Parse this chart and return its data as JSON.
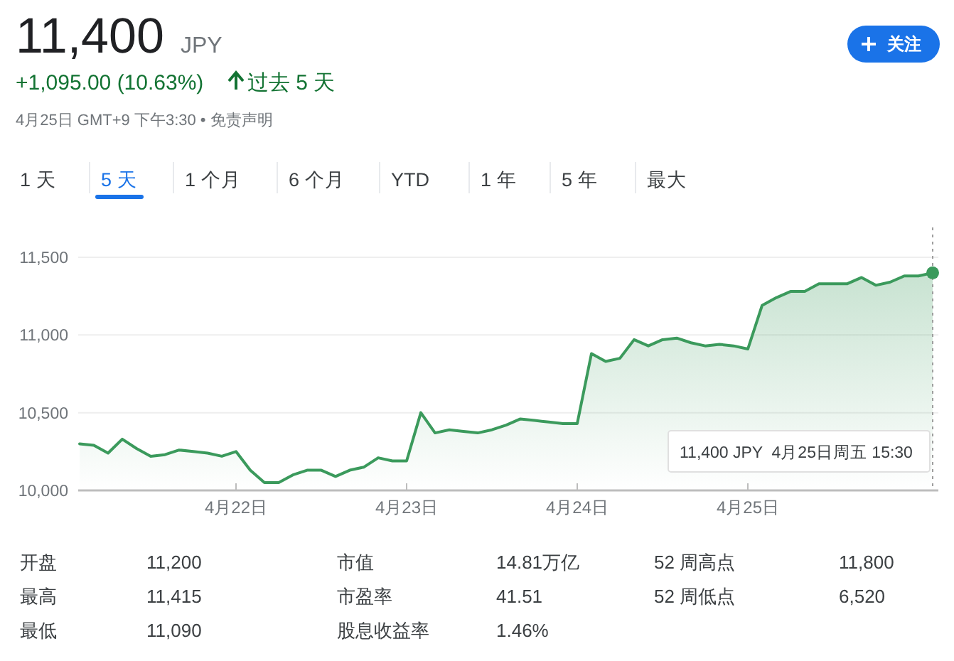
{
  "chart_data": {
    "type": "area",
    "title": "11,400",
    "annotations": [
      "JPY",
      "+1,095.00 (10.63%)",
      "过去 5 天",
      "4月25日 GMT+9 下午3:30 • 免责声明",
      "关注",
      "1 天",
      "5 天",
      "1 个月",
      "6 个月",
      "YTD",
      "1 年",
      "5 年",
      "最大",
      "开盘",
      "11,200",
      "市值",
      "14.81万亿",
      "52 周高点",
      "11,800",
      "最高",
      "11,415",
      "市盈率",
      "41.51",
      "52 周低点",
      "6,520",
      "最低",
      "11,090",
      "股息收益率",
      "1.46%",
      "11,400 JPY  4月25日周五 15:30"
    ],
    "categories": [
      null,
      null,
      null,
      null,
      null,
      null,
      null,
      null,
      null,
      null,
      null,
      "4月22日",
      null,
      null,
      null,
      null,
      null,
      null,
      null,
      null,
      null,
      null,
      null,
      "4月23日",
      null,
      null,
      null,
      null,
      null,
      null,
      null,
      null,
      null,
      null,
      null,
      "4月24日",
      null,
      null,
      null,
      null,
      null,
      null,
      null,
      null,
      null,
      null,
      null,
      "4月25日",
      null,
      null,
      null,
      null,
      null,
      null,
      null,
      null,
      null,
      null,
      null,
      null,
      null
    ],
    "series": [
      {
        "color": "#3b9a5c",
        "values": [
          10300,
          10290,
          10240,
          10330,
          10270,
          10220,
          10230,
          10260,
          10250,
          10240,
          10220,
          10250,
          10130,
          10050,
          10050,
          10100,
          10130,
          10130,
          10090,
          10130,
          10150,
          10210,
          10190,
          10190,
          10500,
          10370,
          10390,
          10380,
          10370,
          10390,
          10420,
          10460,
          10450,
          10440,
          10430,
          10430,
          10880,
          10830,
          10850,
          10970,
          10930,
          10970,
          10980,
          10950,
          10930,
          10940,
          10930,
          10910,
          11190,
          11240,
          11280,
          11280,
          11330,
          11330,
          11330,
          11370,
          11320,
          11340,
          11380,
          11380,
          11400
        ]
      }
    ],
    "ylim": [
      10000,
      11500
    ],
    "yticks": [
      {
        "value": 10000,
        "label": "10,000"
      },
      {
        "value": 10500,
        "label": "10,500"
      },
      {
        "value": 11000,
        "label": "11,000"
      },
      {
        "value": 11500,
        "label": "11,500"
      }
    ],
    "grid": "y",
    "marker": "none"
  }
}
